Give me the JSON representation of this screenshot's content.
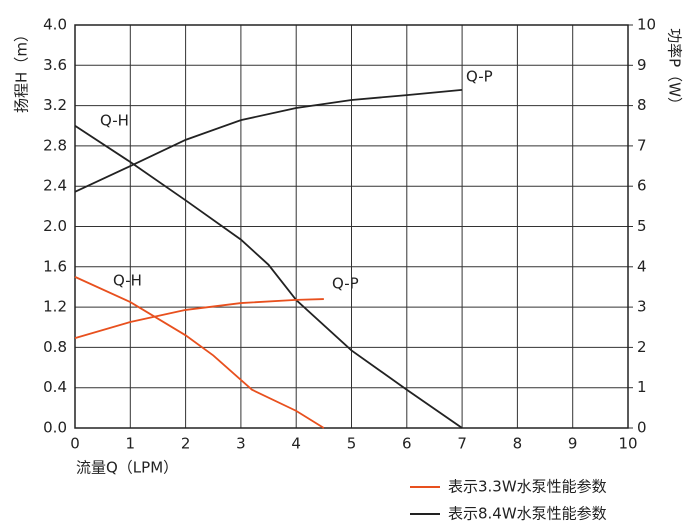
{
  "chart_data": {
    "type": "line",
    "xlabel": "流量Q（LPM）",
    "ylabel": "扬程H（m）",
    "y2label": "功率P（W）",
    "xlim": [
      0,
      10
    ],
    "xticks": [
      0,
      1,
      2,
      3,
      4,
      5,
      6,
      7,
      8,
      9,
      10
    ],
    "ylim": [
      0,
      4
    ],
    "yticks": [
      {
        "value": 0,
        "label": "0.0"
      },
      {
        "value": 0.4,
        "label": "0.4"
      },
      {
        "value": 0.8,
        "label": "0.8"
      },
      {
        "value": 1.2,
        "label": "1.2"
      },
      {
        "value": 1.6,
        "label": "1.6"
      },
      {
        "value": 2,
        "label": "2.0"
      },
      {
        "value": 2.4,
        "label": "2.4"
      },
      {
        "value": 2.8,
        "label": "2.8"
      },
      {
        "value": 3.2,
        "label": "3.2"
      },
      {
        "value": 3.6,
        "label": "3.6"
      },
      {
        "value": 4,
        "label": "4.0"
      }
    ],
    "y2lim": [
      0,
      10
    ],
    "y2ticks": [
      0,
      1,
      2,
      3,
      4,
      5,
      6,
      7,
      8,
      9,
      10
    ],
    "grid": true,
    "series": [
      {
        "name": "Q-H",
        "color": "#222222",
        "x": [
          0,
          1,
          2,
          3,
          3.5,
          4,
          5,
          6,
          7
        ],
        "values": [
          3.0,
          2.64,
          2.26,
          1.87,
          1.62,
          1.27,
          0.77,
          0.38,
          0
        ]
      },
      {
        "name": "Q-P",
        "color": "#222222",
        "axis": "y2",
        "x": [
          0,
          1,
          2,
          3,
          4,
          5,
          6,
          7
        ],
        "values": [
          5.86,
          6.5,
          7.15,
          7.64,
          7.94,
          8.14,
          8.26,
          8.39
        ]
      },
      {
        "name": "Q-H",
        "color": "#e8501e",
        "x": [
          0,
          1,
          2,
          2.5,
          3.2,
          4,
          4.5
        ],
        "values": [
          1.5,
          1.25,
          0.92,
          0.72,
          0.38,
          0.17,
          0
        ]
      },
      {
        "name": "Q-P",
        "color": "#e8501e",
        "axis": "y2",
        "x": [
          0,
          1,
          2,
          3,
          4,
          4.5
        ],
        "values": [
          2.23,
          2.63,
          2.93,
          3.1,
          3.18,
          3.2
        ]
      }
    ],
    "legend": [
      {
        "label": "表示3.3W水泵性能参数",
        "color": "#e8501e"
      },
      {
        "label": "表示8.4W水泵性能参数",
        "color": "#222222"
      }
    ]
  }
}
